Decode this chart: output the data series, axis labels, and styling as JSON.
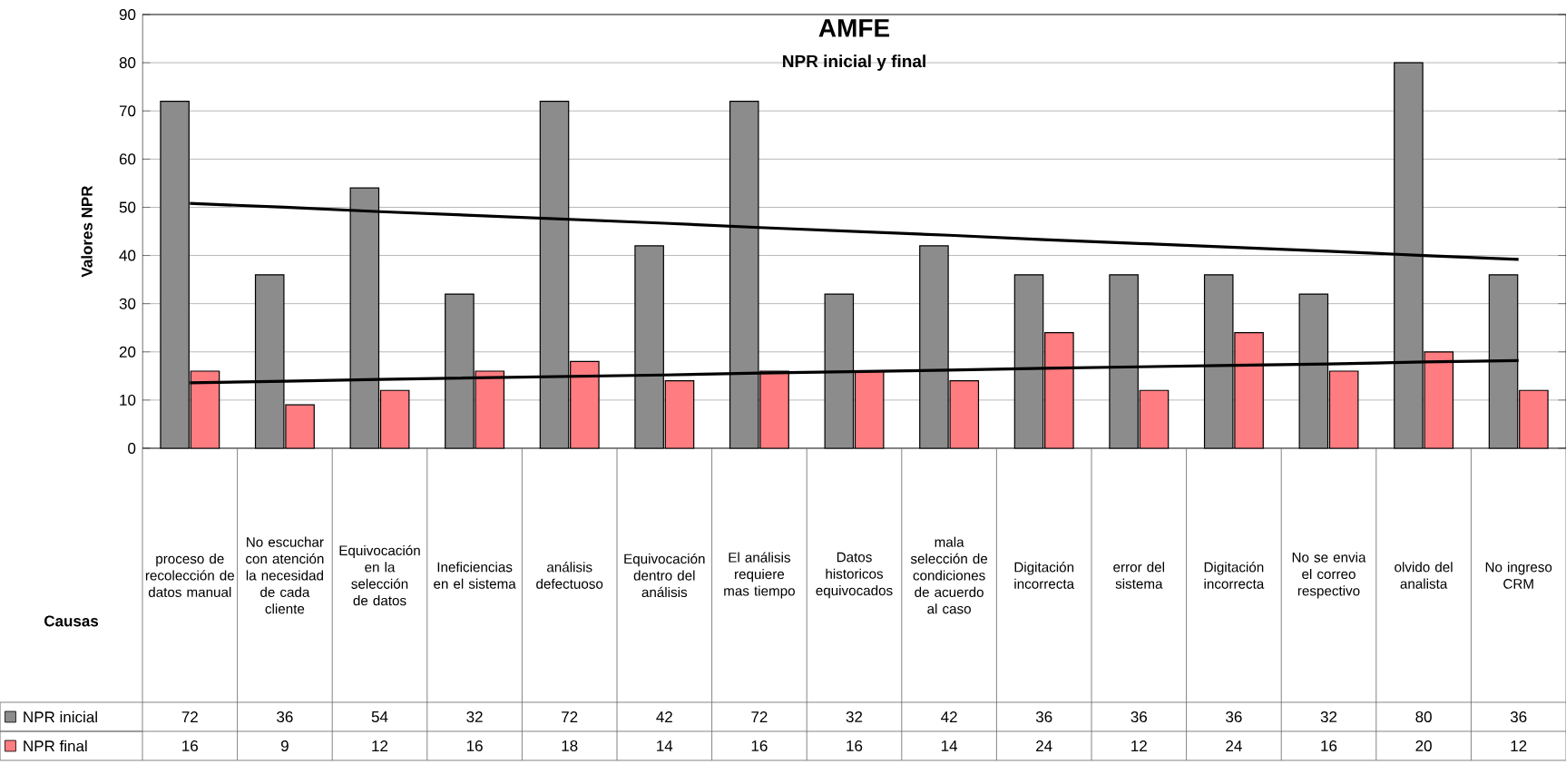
{
  "chart_data": {
    "type": "bar",
    "title": "AMFE",
    "subtitle": "NPR inicial y final",
    "xlabel": "Causas",
    "ylabel": "Valores NPR",
    "categories": [
      "proceso de recolección de datos manual",
      "No escuchar con atención la necesidad de cada cliente",
      "Equivocación en la selección de datos",
      "Ineficiencias en el sistema",
      "análisis defectuoso",
      "Equivocación dentro del análisis",
      "El análisis requiere mas tiempo",
      "Datos historicos equivocados",
      "mala selección de condiciones de acuerdo al caso",
      "Digitación incorrecta",
      "error del sistema",
      "Digitación incorrecta",
      "No se envia el correo respectivo",
      "olvido del analista",
      "No ingreso CRM"
    ],
    "series": [
      {
        "name": "NPR inicial",
        "color": "#8c8c8c",
        "values": [
          72,
          36,
          54,
          32,
          72,
          42,
          72,
          32,
          42,
          36,
          36,
          36,
          32,
          80,
          36
        ],
        "value_labels": [
          "72",
          "36",
          "54",
          "32",
          "72",
          "42",
          "72",
          "32",
          "42",
          "36",
          "36",
          "36",
          "32",
          "80",
          "36"
        ]
      },
      {
        "name": "NPR final",
        "color": "#ff7c80",
        "values": [
          16,
          9,
          12,
          16,
          18,
          14,
          16,
          16,
          14,
          24,
          12,
          24,
          16,
          20,
          12
        ],
        "value_labels": [
          "16",
          "9",
          "12",
          "16",
          "18",
          "14",
          "16",
          "16",
          "14",
          "24",
          "12",
          "24",
          "16",
          "20",
          "12"
        ]
      },
      {
        "type": "line",
        "color": "#000000",
        "values": [
          50.8,
          50.0,
          49.1,
          48.3,
          47.5,
          46.7,
          45.8,
          45.0,
          44.2,
          43.3,
          42.5,
          41.7,
          40.9,
          40.0,
          39.2
        ]
      },
      {
        "type": "line",
        "color": "#000000",
        "values": [
          13.6,
          13.9,
          14.3,
          14.6,
          14.9,
          15.2,
          15.6,
          15.9,
          16.2,
          16.6,
          16.9,
          17.2,
          17.5,
          17.9,
          18.2
        ]
      }
    ],
    "ylim": [
      0,
      90
    ],
    "yticks": [
      0,
      10,
      20,
      30,
      40,
      50,
      60,
      70,
      80,
      90
    ],
    "grid": "y",
    "legend": "bottom left"
  }
}
